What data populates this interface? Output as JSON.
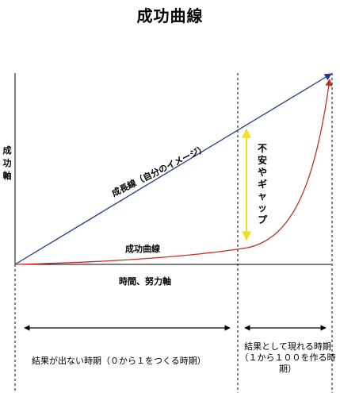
{
  "title": "成功曲線",
  "y_axis_label": "成功軸",
  "x_axis_label": "時間、努力軸",
  "ideal_line_label": "成長線（自分のイメージ）",
  "success_curve_label": "成功曲線",
  "gap_label": "不安やギャップ",
  "phase1_label": "結果が出ない時期（０から１をつくる時期）",
  "phase2_label_line1": "結果として現れる時期",
  "phase2_label_line2": "（１から１００を作る時期）",
  "colors": {
    "ideal_line": "#1f3a8f",
    "success_curve": "#c0302a",
    "gap_arrow": "#f0e020"
  }
}
